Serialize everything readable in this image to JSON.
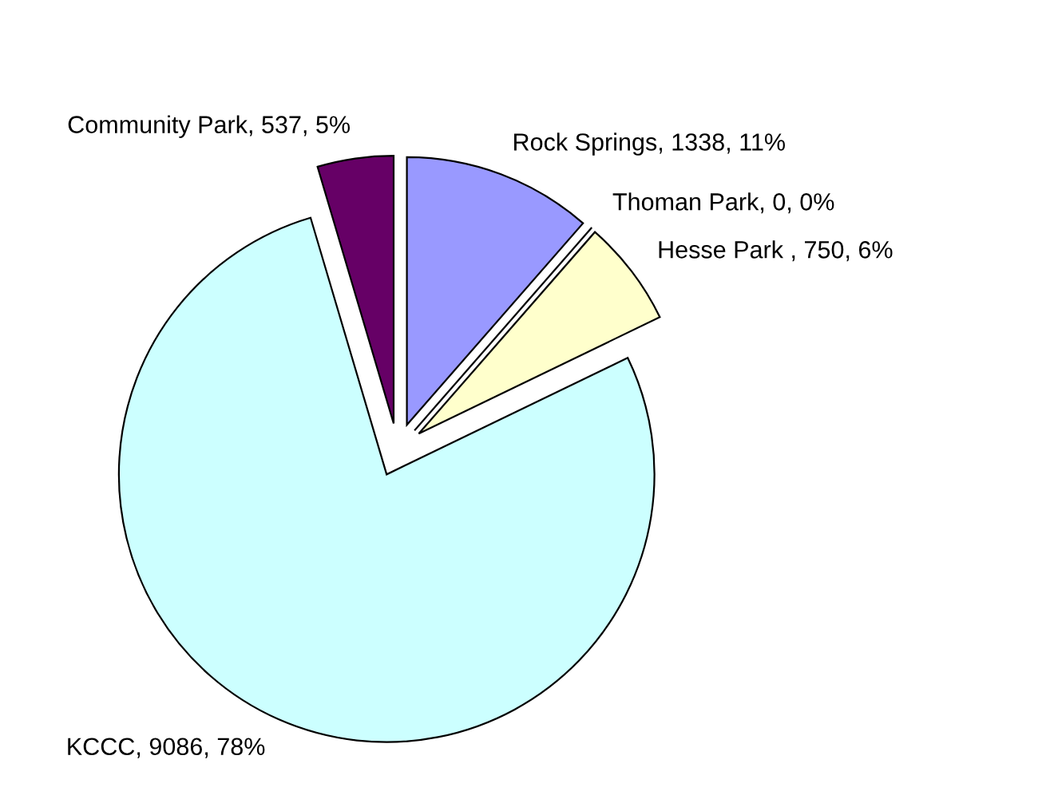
{
  "chart_data": {
    "type": "pie",
    "categories": [
      "Rock Springs",
      "Thoman Park",
      "Hesse Park ",
      "KCCC",
      "Community Park"
    ],
    "values": [
      1338,
      0,
      750,
      9086,
      537
    ],
    "value_labels": [
      ", 1338, 11%",
      ", 0, 0%",
      ", 750, 6%",
      ", 9086, 78%",
      ", 537, 5%"
    ],
    "colors": [
      "#9999ff",
      "#993366",
      "#ffffcc",
      "#ccffff",
      "#660066"
    ],
    "legend": false
  }
}
